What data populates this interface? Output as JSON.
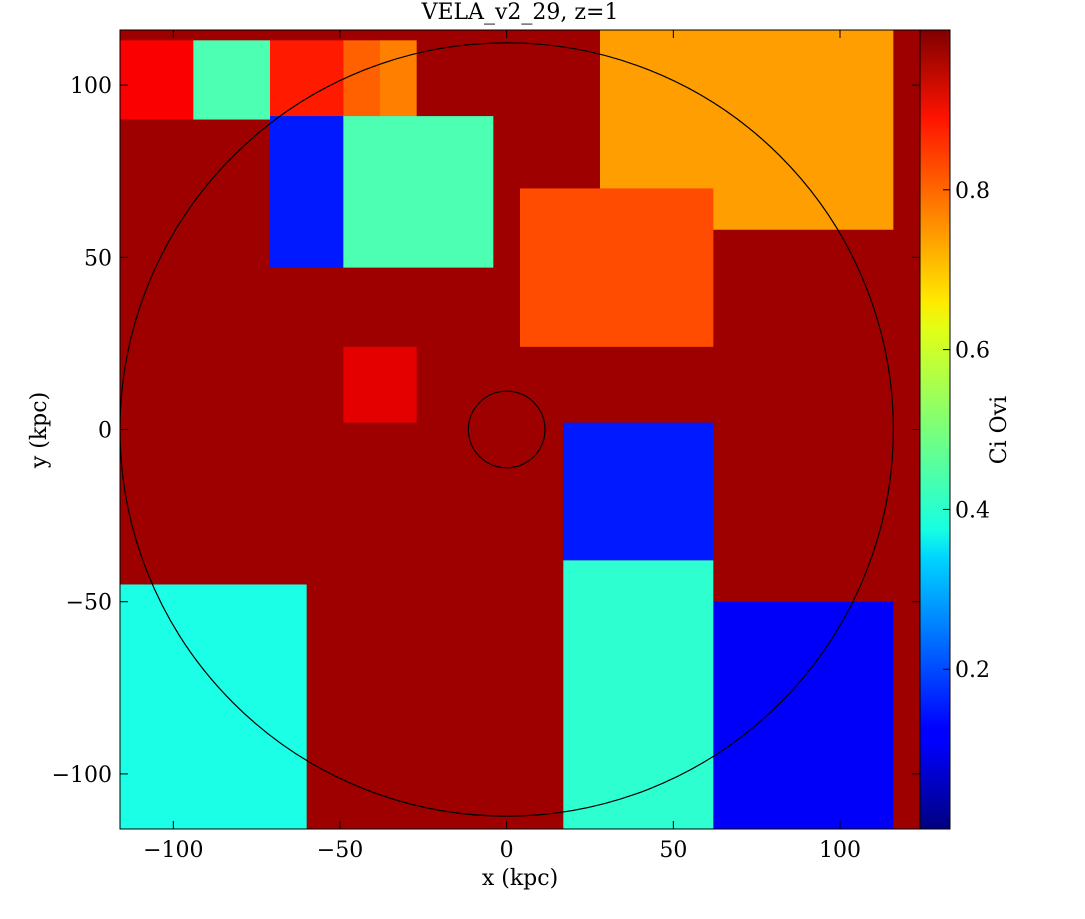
{
  "chart_data": {
    "type": "heatmap",
    "title": "VELA_v2_29, z=1",
    "xlabel": "x  (kpc)",
    "ylabel": "y  (kpc)",
    "colorbar_label": "Ci Ovi",
    "colormap": "jet",
    "xlim": [
      -116,
      124
    ],
    "ylim": [
      -116,
      116
    ],
    "x_ticks": [
      -100,
      -50,
      0,
      50,
      100
    ],
    "x_tick_labels": [
      "−100",
      "−50",
      "0",
      "50",
      "100"
    ],
    "y_ticks": [
      -100,
      -50,
      0,
      50,
      100
    ],
    "y_tick_labels": [
      "−100",
      "−50",
      "0",
      "50",
      "100"
    ],
    "colorbar_range": [
      0.0,
      1.0
    ],
    "colorbar_ticks": [
      0.2,
      0.4,
      0.6,
      0.8
    ],
    "colorbar_tick_labels": [
      "0.2",
      "0.4",
      "0.6",
      "0.8"
    ],
    "circles": [
      {
        "center": [
          0,
          0
        ],
        "radius_kpc": 116
      },
      {
        "center": [
          0,
          0
        ],
        "radius_kpc": 11.5
      }
    ],
    "regions": [
      {
        "x": [
          -116,
          -116
        ],
        "y": [
          -116,
          116
        ],
        "value": 0.97
      },
      {
        "x": [
          -116,
          -94
        ],
        "y": [
          90,
          113
        ],
        "value": 0.88
      },
      {
        "x": [
          -94,
          -71
        ],
        "y": [
          90,
          113
        ],
        "value": 0.45
      },
      {
        "x": [
          -71,
          -49
        ],
        "y": [
          90,
          113
        ],
        "value": 0.85
      },
      {
        "x": [
          -49,
          -38
        ],
        "y": [
          90,
          113
        ],
        "value": 0.78
      },
      {
        "x": [
          -38,
          -27
        ],
        "y": [
          90,
          113
        ],
        "value": 0.75
      },
      {
        "x": [
          -71,
          -49
        ],
        "y": [
          47,
          91
        ],
        "value": 0.15
      },
      {
        "x": [
          -49,
          -4
        ],
        "y": [
          47,
          91
        ],
        "value": 0.45
      },
      {
        "x": [
          -49,
          -27
        ],
        "y": [
          2,
          24
        ],
        "value": 0.9
      },
      {
        "x": [
          17,
          62
        ],
        "y": [
          -38,
          2
        ],
        "value": 0.15
      },
      {
        "x": [
          62,
          116
        ],
        "y": [
          -116,
          -50
        ],
        "value": 0.12
      },
      {
        "x": [
          17,
          62
        ],
        "y": [
          -116,
          -38
        ],
        "value": 0.42
      },
      {
        "x": [
          -116,
          -60
        ],
        "y": [
          -116,
          -45
        ],
        "value": 0.4
      },
      {
        "x": [
          28,
          116
        ],
        "y": [
          58,
          116
        ],
        "value": 0.72
      },
      {
        "x": [
          4,
          62
        ],
        "y": [
          24,
          70
        ],
        "value": 0.8
      }
    ]
  }
}
